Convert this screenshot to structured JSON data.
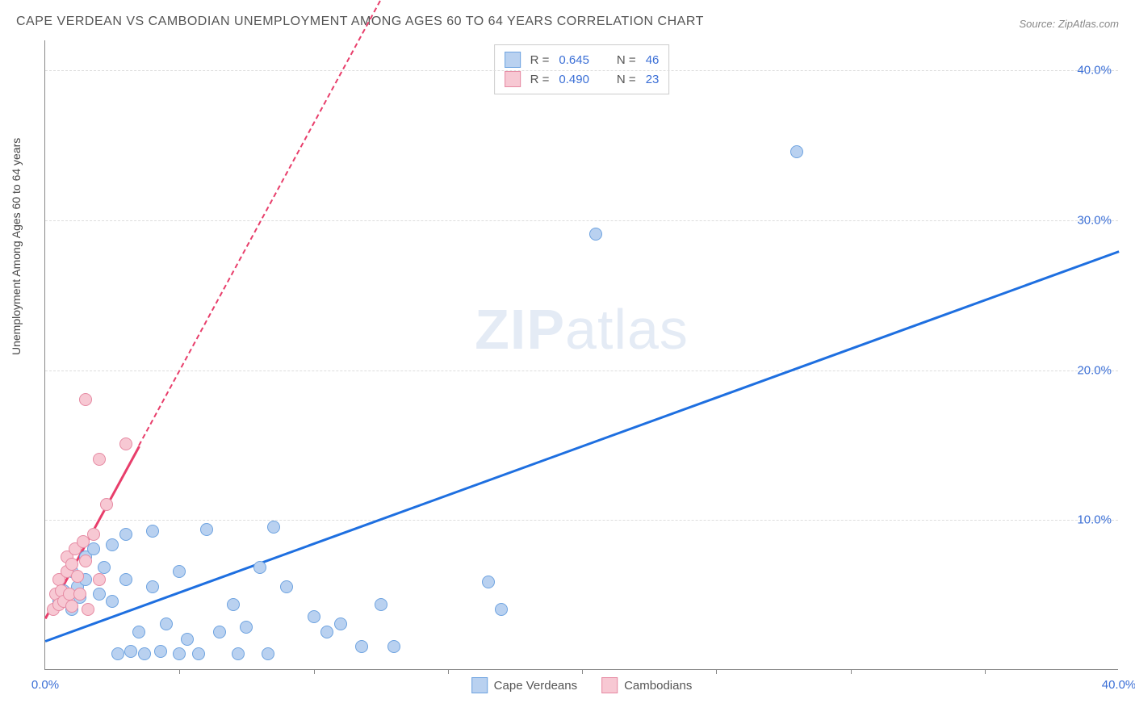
{
  "title": "CAPE VERDEAN VS CAMBODIAN UNEMPLOYMENT AMONG AGES 60 TO 64 YEARS CORRELATION CHART",
  "source": "Source: ZipAtlas.com",
  "ylabel": "Unemployment Among Ages 60 to 64 years",
  "watermark": {
    "bold": "ZIP",
    "rest": "atlas"
  },
  "chart": {
    "type": "scatter",
    "background_color": "#ffffff",
    "grid_color": "#dddddd",
    "axis_color": "#888888",
    "tick_color": "#3b6fd6",
    "xlim": [
      0,
      40
    ],
    "ylim": [
      0,
      42
    ],
    "x_ticks": [
      {
        "pos": 0,
        "label": "0.0%"
      },
      {
        "pos": 40,
        "label": "40.0%"
      }
    ],
    "x_minor_ticks": [
      5,
      10,
      15,
      20,
      25,
      30,
      35
    ],
    "y_ticks": [
      {
        "pos": 10,
        "label": "10.0%"
      },
      {
        "pos": 20,
        "label": "20.0%"
      },
      {
        "pos": 30,
        "label": "30.0%"
      },
      {
        "pos": 40,
        "label": "40.0%"
      }
    ],
    "point_radius": 8,
    "series": [
      {
        "name": "Cape Verdeans",
        "fill": "#b9d1f0",
        "stroke": "#6ea3e0",
        "trend_color": "#1e6fe0",
        "trend": {
          "x1": 0,
          "y1": 2.0,
          "x2": 40,
          "y2": 28.0,
          "dash_after_x": 40
        },
        "r": "0.645",
        "n": "46",
        "points": [
          [
            0.5,
            4.5
          ],
          [
            0.7,
            5.2
          ],
          [
            1.0,
            4.0
          ],
          [
            1.0,
            6.5
          ],
          [
            1.2,
            5.5
          ],
          [
            1.3,
            4.8
          ],
          [
            1.5,
            6.0
          ],
          [
            1.5,
            7.5
          ],
          [
            1.8,
            8.0
          ],
          [
            2.0,
            5.0
          ],
          [
            2.2,
            6.8
          ],
          [
            2.5,
            4.5
          ],
          [
            2.5,
            8.3
          ],
          [
            2.7,
            1.0
          ],
          [
            3.0,
            6.0
          ],
          [
            3.0,
            9.0
          ],
          [
            3.2,
            1.2
          ],
          [
            3.5,
            2.5
          ],
          [
            3.7,
            1.0
          ],
          [
            4.0,
            9.2
          ],
          [
            4.0,
            5.5
          ],
          [
            4.3,
            1.2
          ],
          [
            4.5,
            3.0
          ],
          [
            5.0,
            6.5
          ],
          [
            5.0,
            1.0
          ],
          [
            5.3,
            2.0
          ],
          [
            5.7,
            1.0
          ],
          [
            6.0,
            9.3
          ],
          [
            6.5,
            2.5
          ],
          [
            7.0,
            4.3
          ],
          [
            7.2,
            1.0
          ],
          [
            7.5,
            2.8
          ],
          [
            8.0,
            6.8
          ],
          [
            8.3,
            1.0
          ],
          [
            8.5,
            9.5
          ],
          [
            9.0,
            5.5
          ],
          [
            10.0,
            3.5
          ],
          [
            10.5,
            2.5
          ],
          [
            11.0,
            3.0
          ],
          [
            11.8,
            1.5
          ],
          [
            12.5,
            4.3
          ],
          [
            13.0,
            1.5
          ],
          [
            16.5,
            5.8
          ],
          [
            17.0,
            4.0
          ],
          [
            20.5,
            29.0
          ],
          [
            28.0,
            34.5
          ]
        ]
      },
      {
        "name": "Cambodians",
        "fill": "#f7c8d3",
        "stroke": "#e68aa3",
        "trend_color": "#e83e6b",
        "trend": {
          "x1": 0,
          "y1": 3.5,
          "x2": 3.5,
          "y2": 15.0,
          "dash_after_x": 3.5,
          "dash_x2": 13.5,
          "dash_y2": 48
        },
        "r": "0.490",
        "n": "23",
        "points": [
          [
            0.3,
            4.0
          ],
          [
            0.4,
            5.0
          ],
          [
            0.5,
            4.3
          ],
          [
            0.5,
            6.0
          ],
          [
            0.6,
            5.2
          ],
          [
            0.7,
            4.5
          ],
          [
            0.8,
            6.5
          ],
          [
            0.8,
            7.5
          ],
          [
            0.9,
            5.0
          ],
          [
            1.0,
            7.0
          ],
          [
            1.0,
            4.2
          ],
          [
            1.1,
            8.0
          ],
          [
            1.2,
            6.2
          ],
          [
            1.3,
            5.0
          ],
          [
            1.4,
            8.5
          ],
          [
            1.5,
            7.2
          ],
          [
            1.6,
            4.0
          ],
          [
            1.8,
            9.0
          ],
          [
            2.0,
            6.0
          ],
          [
            2.0,
            14.0
          ],
          [
            2.3,
            11.0
          ],
          [
            1.5,
            18.0
          ],
          [
            3.0,
            15.0
          ]
        ]
      }
    ],
    "legend_bottom": [
      {
        "label": "Cape Verdeans",
        "fill": "#b9d1f0",
        "stroke": "#6ea3e0"
      },
      {
        "label": "Cambodians",
        "fill": "#f7c8d3",
        "stroke": "#e68aa3"
      }
    ]
  }
}
